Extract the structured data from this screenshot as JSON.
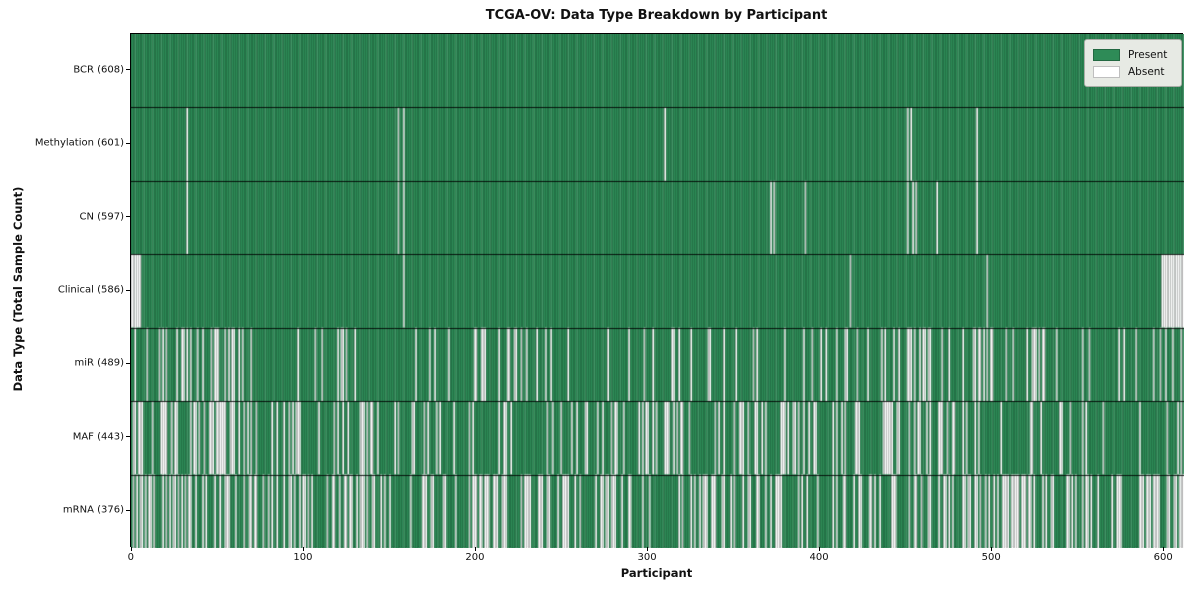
{
  "chart_data": {
    "type": "heatmap",
    "title": "TCGA-OV: Data Type Breakdown by Participant",
    "xlabel": "Participant",
    "ylabel": "Data Type (Total Sample Count)",
    "x_ticks": [
      0,
      100,
      200,
      300,
      400,
      500,
      600
    ],
    "n_participants": 608,
    "x_axis_units": 612,
    "grid": "row-separators-only",
    "legend_position": "upper-right",
    "legend": {
      "items": [
        {
          "label": "Present",
          "color": "#2e8b57"
        },
        {
          "label": "Absent",
          "color": "#ffffff"
        }
      ]
    },
    "colors": {
      "present": "#2e8b57",
      "present_edge": "#14532e",
      "absent": "#ffffff",
      "absent_edge": "#9a9a9a",
      "separator": "#000000",
      "legend_bg": "#e7eae4"
    },
    "rows": [
      {
        "label": "BCR (608)",
        "present": 608,
        "absent": 0,
        "absent_cols": []
      },
      {
        "label": "Methylation (601)",
        "present": 601,
        "absent": 7,
        "absent_cols": [
          32,
          154,
          157,
          308,
          448,
          450,
          488
        ]
      },
      {
        "label": "CN (597)",
        "present": 597,
        "absent": 11,
        "absent_cols": [
          32,
          154,
          157,
          369,
          371,
          389,
          448,
          451,
          453,
          465,
          488
        ]
      },
      {
        "label": "Clinical (586)",
        "present": 586,
        "absent": 22,
        "absent_cols": [
          0,
          1,
          2,
          3,
          4,
          5,
          157,
          415,
          494,
          595,
          596,
          597,
          598,
          599,
          600,
          601,
          602,
          603,
          604,
          605,
          606,
          607
        ]
      },
      {
        "label": "miR (489)",
        "present": 489,
        "absent": 119,
        "seed": 11,
        "density": [
          2.5,
          2.5,
          2.5,
          2.0,
          0.7,
          0.5,
          2.0,
          1.5,
          0.5,
          1.0,
          0.8,
          0.5,
          1.0,
          0.8,
          2.5,
          4.0,
          1.5,
          1.5,
          2.0
        ]
      },
      {
        "label": "MAF (443)",
        "present": 443,
        "absent": 165,
        "seed": 22,
        "density": [
          2.5,
          3.0,
          2.0,
          2.0,
          1.5,
          1.0,
          1.0,
          1.0,
          0.8,
          2.0,
          1.2,
          2.5,
          1.5,
          2.5,
          2.5,
          1.5,
          1.0,
          1.2,
          1.5
        ]
      },
      {
        "label": "mRNA (376)",
        "present": 376,
        "absent": 232,
        "seed": 33,
        "density": [
          3.0,
          2.5,
          2.0,
          2.0,
          1.8,
          1.5,
          2.2,
          2.5,
          2.0,
          1.0,
          1.5,
          1.5,
          1.8,
          1.5,
          2.2,
          3.0,
          1.8,
          1.5,
          3.0
        ]
      }
    ]
  }
}
